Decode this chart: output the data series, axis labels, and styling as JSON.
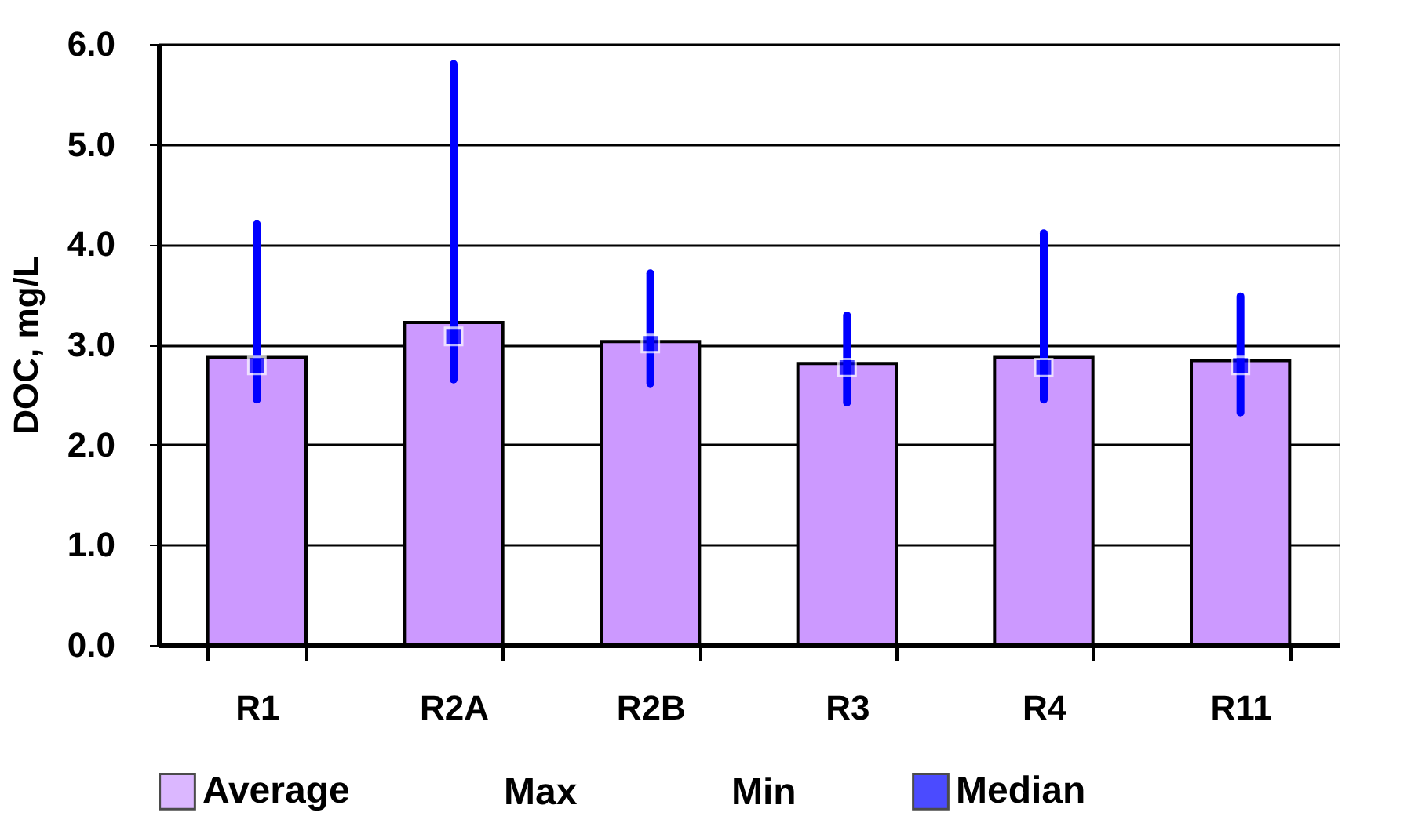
{
  "chart_data": {
    "type": "bar",
    "ylabel": "DOC, mg/L",
    "categories": [
      "R1",
      "R2A",
      "R2B",
      "R3",
      "R4",
      "R11"
    ],
    "series": [
      {
        "name": "Average",
        "color": "#cc99ff",
        "values": [
          2.87,
          3.22,
          3.03,
          2.81,
          2.87,
          2.84
        ]
      },
      {
        "name": "Median",
        "type": "scatter",
        "marker": "square",
        "color": "#0000ff",
        "values": [
          2.79,
          3.08,
          3.01,
          2.77,
          2.77,
          2.79
        ],
        "errors": [
          [
            2.45,
            4.2
          ],
          [
            2.65,
            5.8
          ],
          [
            2.61,
            3.71
          ],
          [
            2.42,
            3.29
          ],
          [
            2.45,
            4.11
          ],
          [
            2.32,
            3.48
          ]
        ]
      }
    ],
    "annotations": [
      "Max",
      "Min"
    ],
    "ylim": [
      0,
      6
    ],
    "yticks": [
      {
        "value": 0,
        "label": "0.0"
      },
      {
        "value": 1,
        "label": "1.0"
      },
      {
        "value": 2,
        "label": "2.0"
      },
      {
        "value": 3,
        "label": "3.0"
      },
      {
        "value": 4,
        "label": "4.0"
      },
      {
        "value": 5,
        "label": "5.0"
      },
      {
        "value": 6,
        "label": "6.0"
      }
    ],
    "grid": "y",
    "legend": "bottom"
  }
}
